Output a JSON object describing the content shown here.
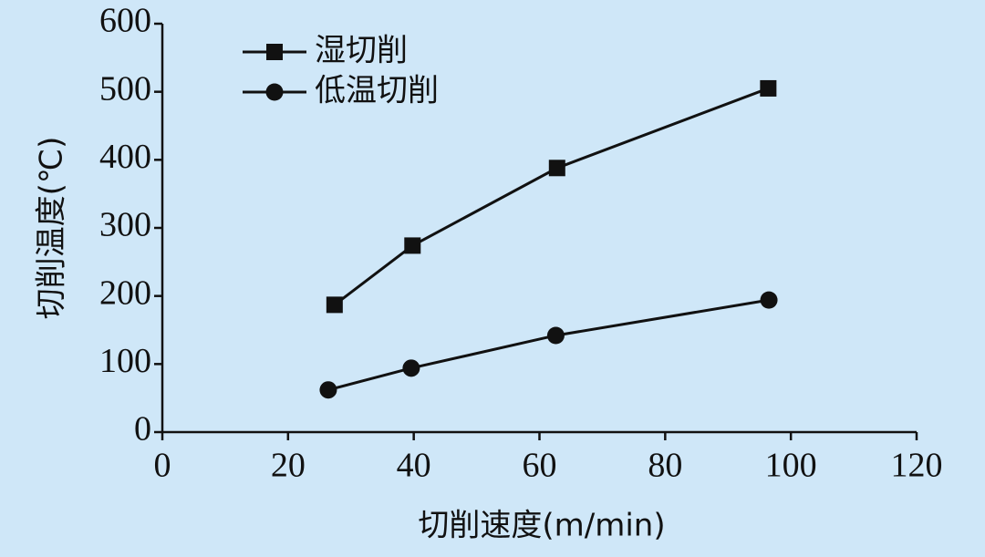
{
  "chart_data": {
    "type": "line",
    "xlabel": "切削速度(m/min)",
    "ylabel": "切削温度(℃)",
    "xlim": [
      0,
      120
    ],
    "xticks": [
      0,
      20,
      40,
      60,
      80,
      100,
      120
    ],
    "ylim": [
      0,
      600
    ],
    "yticks": [
      0,
      100,
      200,
      300,
      400,
      500,
      600
    ],
    "legend": "upper left",
    "grid": false,
    "series": [
      {
        "name": "湿切削",
        "color": "#111111",
        "marker": "square",
        "x": [
          27.4,
          39.8,
          62.8,
          96.4
        ],
        "values": [
          187,
          274,
          388,
          505
        ]
      },
      {
        "name": "低温切削",
        "color": "#111111",
        "marker": "circle",
        "x": [
          26.4,
          39.6,
          62.6,
          96.5
        ],
        "values": [
          62,
          94,
          142,
          194
        ]
      }
    ]
  }
}
